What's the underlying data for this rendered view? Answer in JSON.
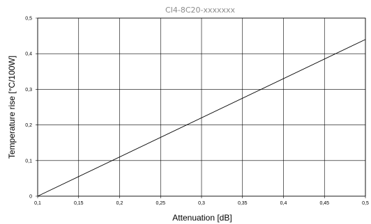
{
  "chart_data": {
    "type": "line",
    "title": "CI4-8C20-xxxxxxx",
    "xlabel": "Attenuation [dB]",
    "ylabel": "Temperature rise [°C/100W]",
    "xlim": [
      0.1,
      0.5
    ],
    "ylim": [
      0,
      0.5
    ],
    "x_ticks": [
      0.1,
      0.15,
      0.2,
      0.25,
      0.3,
      0.35,
      0.4,
      0.45,
      0.5
    ],
    "x_tick_labels": [
      "0,1",
      "0,15",
      "0,2",
      "0,25",
      "0,3",
      "0,35",
      "0,4",
      "0,45",
      "0,5"
    ],
    "y_ticks": [
      0,
      0.1,
      0.2,
      0.3,
      0.4,
      0.5
    ],
    "y_tick_labels": [
      "0",
      "0,1",
      "0,2",
      "0,3",
      "0,4",
      "0,5"
    ],
    "grid": true,
    "legend": "none",
    "series": [
      {
        "x": [
          0.1,
          0.5
        ],
        "y": [
          0,
          0.44
        ]
      }
    ],
    "colors": {
      "line": "#000000",
      "grid": "#000000",
      "title": "#8c8c8c"
    }
  }
}
